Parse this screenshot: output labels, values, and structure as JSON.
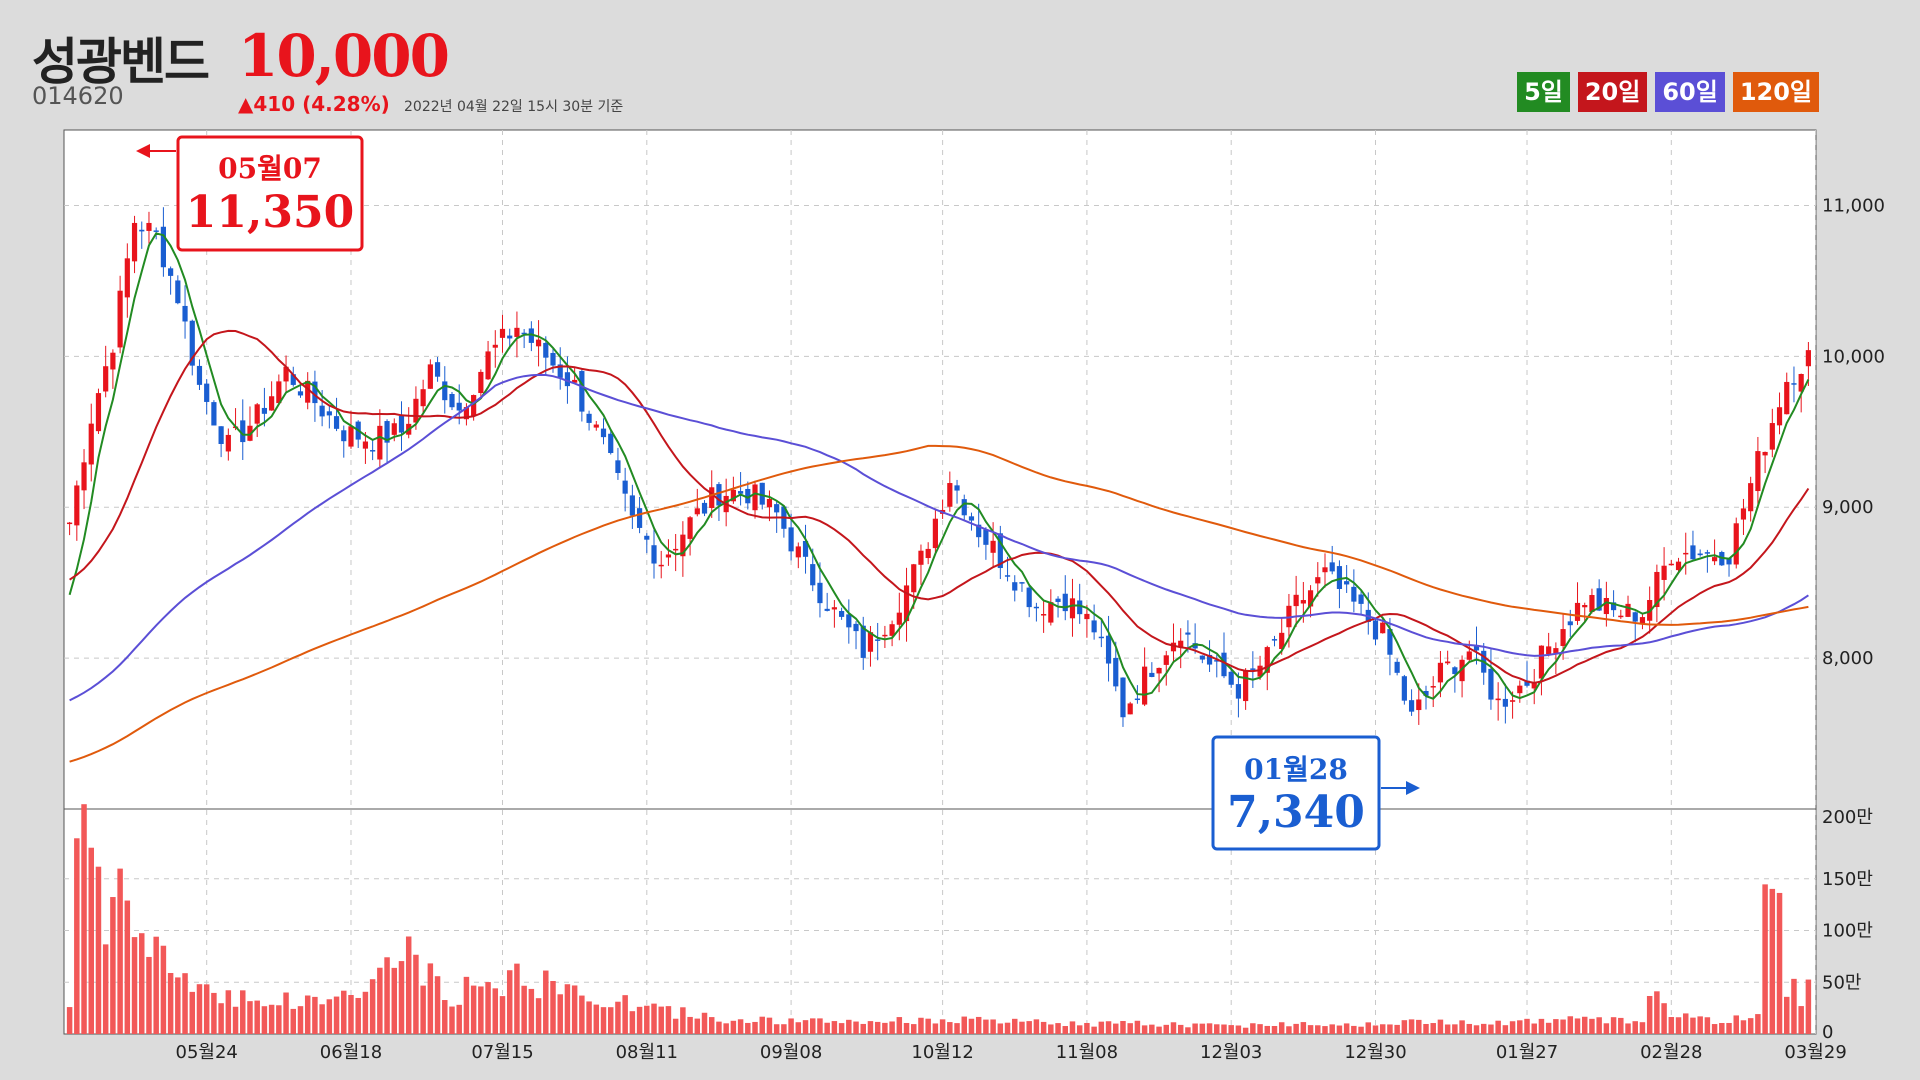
{
  "header": {
    "name": "성광벤드",
    "price": "10,000",
    "code": "014620",
    "change": "▲410 (4.28%)",
    "timestamp": "2022년 04월 22일 15시 30분 기준"
  },
  "legend": [
    {
      "label": "5일",
      "color": "#228b22"
    },
    {
      "label": "20일",
      "color": "#c4161c"
    },
    {
      "label": "60일",
      "color": "#5b4fd6"
    },
    {
      "label": "120일",
      "color": "#e05a0c"
    }
  ],
  "annotations": {
    "high": {
      "date": "05월07",
      "value": "11,350",
      "color": "#e8141c"
    },
    "low": {
      "date": "01월28",
      "value": "7,340",
      "color": "#1a5ed1"
    }
  },
  "chart_data": {
    "type": "candlestick",
    "up_color": "#e8141c",
    "down_color": "#1a5ed1",
    "x_tick_labels": [
      "05월24",
      "06월18",
      "07월15",
      "08월11",
      "09월08",
      "10월12",
      "11월08",
      "12월03",
      "12월30",
      "01월27",
      "02월28",
      "03월29"
    ],
    "price_axis": {
      "min": 7000,
      "max": 11500,
      "ticks": [
        "8,000",
        "9,000",
        "10,000",
        "11,000"
      ]
    },
    "volume_axis": {
      "min": 0,
      "max": 200,
      "unit": "만",
      "ticks": [
        "0",
        "50만",
        "100만",
        "150만",
        "200만"
      ]
    },
    "close_anchors": [
      [
        0,
        8900
      ],
      [
        3,
        9600
      ],
      [
        6,
        10100
      ],
      [
        9,
        10900
      ],
      [
        12,
        10800
      ],
      [
        15,
        10400
      ],
      [
        18,
        9800
      ],
      [
        22,
        9400
      ],
      [
        26,
        9600
      ],
      [
        30,
        9900
      ],
      [
        34,
        9700
      ],
      [
        38,
        9500
      ],
      [
        42,
        9450
      ],
      [
        46,
        9500
      ],
      [
        50,
        9900
      ],
      [
        54,
        9650
      ],
      [
        58,
        10000
      ],
      [
        62,
        10200
      ],
      [
        66,
        10000
      ],
      [
        70,
        9800
      ],
      [
        74,
        9400
      ],
      [
        78,
        8900
      ],
      [
        82,
        8650
      ],
      [
        86,
        8900
      ],
      [
        90,
        9100
      ],
      [
        94,
        9100
      ],
      [
        98,
        8950
      ],
      [
        102,
        8600
      ],
      [
        106,
        8300
      ],
      [
        110,
        8050
      ],
      [
        114,
        8300
      ],
      [
        118,
        8650
      ],
      [
        122,
        9200
      ],
      [
        126,
        8850
      ],
      [
        130,
        8600
      ],
      [
        134,
        8350
      ],
      [
        138,
        8400
      ],
      [
        142,
        8200
      ],
      [
        146,
        7650
      ],
      [
        150,
        7950
      ],
      [
        154,
        8200
      ],
      [
        158,
        7950
      ],
      [
        162,
        7800
      ],
      [
        166,
        8000
      ],
      [
        170,
        8350
      ],
      [
        174,
        8550
      ],
      [
        178,
        8350
      ],
      [
        182,
        8150
      ],
      [
        186,
        7600
      ],
      [
        190,
        7900
      ],
      [
        194,
        8050
      ],
      [
        198,
        7700
      ],
      [
        202,
        7850
      ],
      [
        206,
        8150
      ],
      [
        210,
        8400
      ],
      [
        214,
        8300
      ],
      [
        218,
        8300
      ],
      [
        222,
        8700
      ],
      [
        226,
        8700
      ],
      [
        230,
        8700
      ],
      [
        234,
        9300
      ],
      [
        238,
        9850
      ],
      [
        241,
        10000
      ]
    ],
    "volume_anchors": [
      [
        0,
        30
      ],
      [
        1,
        190
      ],
      [
        2,
        175
      ],
      [
        3,
        190
      ],
      [
        5,
        95
      ],
      [
        7,
        152
      ],
      [
        9,
        90
      ],
      [
        12,
        75
      ],
      [
        16,
        55
      ],
      [
        20,
        40
      ],
      [
        26,
        35
      ],
      [
        32,
        30
      ],
      [
        40,
        40
      ],
      [
        47,
        80
      ],
      [
        52,
        35
      ],
      [
        56,
        45
      ],
      [
        62,
        55
      ],
      [
        70,
        40
      ],
      [
        80,
        25
      ],
      [
        90,
        15
      ],
      [
        100,
        12
      ],
      [
        110,
        12
      ],
      [
        120,
        14
      ],
      [
        130,
        12
      ],
      [
        140,
        10
      ],
      [
        150,
        10
      ],
      [
        160,
        8
      ],
      [
        170,
        10
      ],
      [
        180,
        10
      ],
      [
        190,
        12
      ],
      [
        200,
        12
      ],
      [
        210,
        14
      ],
      [
        218,
        12
      ],
      [
        220,
        55
      ],
      [
        222,
        20
      ],
      [
        228,
        12
      ],
      [
        232,
        15
      ],
      [
        234,
        20
      ],
      [
        235,
        130
      ],
      [
        236,
        110
      ],
      [
        237,
        150
      ],
      [
        238,
        50
      ],
      [
        239,
        45
      ],
      [
        240,
        30
      ],
      [
        241,
        75
      ]
    ],
    "ma_periods": [
      5,
      20,
      60,
      120
    ],
    "ma_colors": [
      "#228b22",
      "#c4161c",
      "#5b4fd6",
      "#e05a0c"
    ],
    "count": 242
  }
}
